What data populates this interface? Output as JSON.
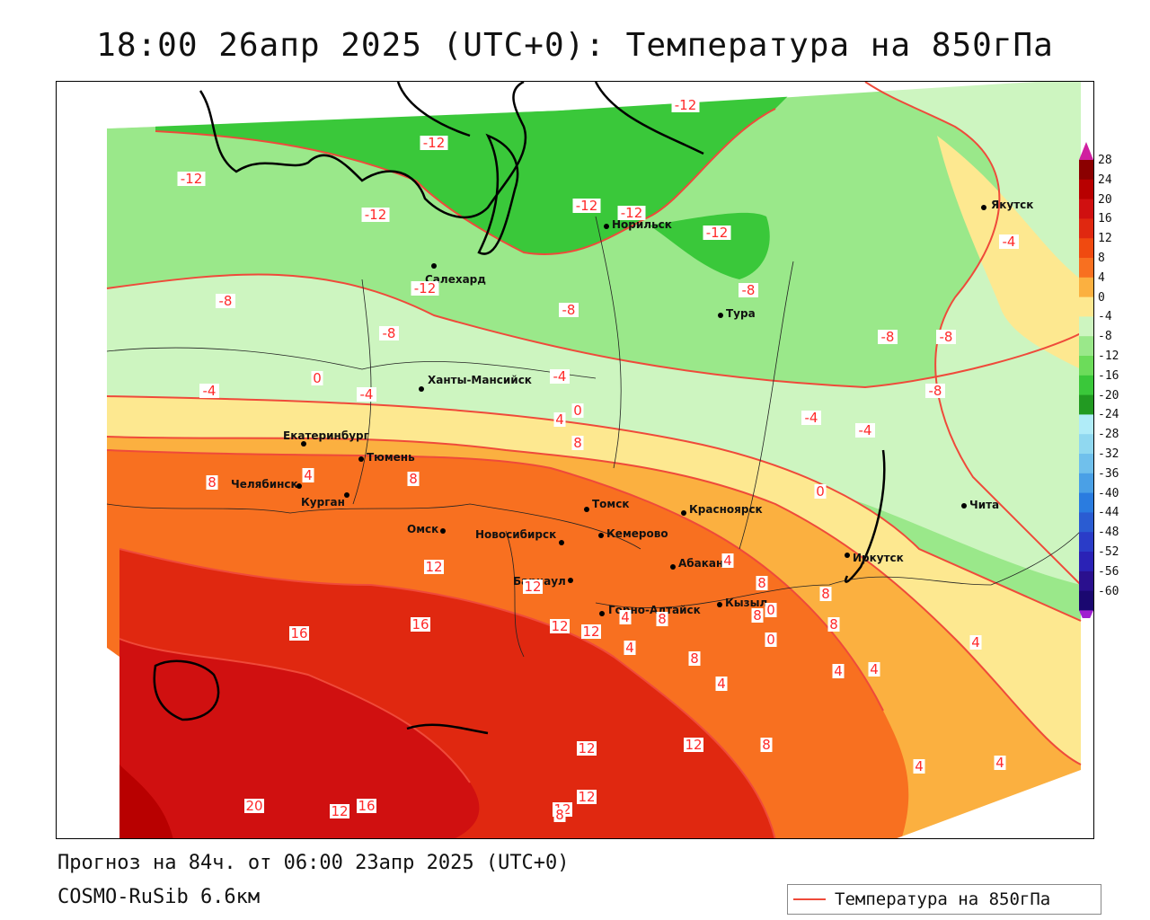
{
  "title": "18:00 26апр 2025 (UTC+0): Температура на 850гПа",
  "forecast_line": "Прогноз на 84ч. от 06:00 23апр 2025 (UTC+0)",
  "model_line": "COSMO-RuSib 6.6км",
  "legend": {
    "label": "Температура на 850гПа",
    "line_color": "#ef4a3a"
  },
  "colorbar": {
    "ticks": [
      "28",
      "24",
      "20",
      "16",
      "12",
      "8",
      "4",
      "0",
      "-4",
      "-8",
      "-12",
      "-16",
      "-20",
      "-24",
      "-28",
      "-32",
      "-36",
      "-40",
      "-44",
      "-48",
      "-52",
      "-56",
      "-60"
    ],
    "colors": [
      "#8b0000",
      "#b80000",
      "#d01010",
      "#e02810",
      "#f04a10",
      "#f87020",
      "#fbb040",
      "#fde890",
      "#cdf5c0",
      "#9ae88a",
      "#6cdc5a",
      "#3ac83a",
      "#229a22",
      "#b0ecf8",
      "#90d8f0",
      "#70c0ec",
      "#4aa0e6",
      "#2a7ce0",
      "#2a5cd2",
      "#2a3cc8",
      "#2a22b6",
      "#2a108e",
      "#1a0870"
    ],
    "top_arrow_color": "#d020a0",
    "bottom_arrow_color": "#a020d0"
  },
  "cities": [
    {
      "name": "Якутск"
    },
    {
      "name": "Норильск"
    },
    {
      "name": "Салехард"
    },
    {
      "name": "Тура"
    },
    {
      "name": "Ханты-Мансийск"
    },
    {
      "name": "Екатеринбург"
    },
    {
      "name": "Тюмень"
    },
    {
      "name": "Челябинск"
    },
    {
      "name": "Курган"
    },
    {
      "name": "Омск"
    },
    {
      "name": "Новосибирск"
    },
    {
      "name": "Томск"
    },
    {
      "name": "Кемерово"
    },
    {
      "name": "Красноярск"
    },
    {
      "name": "Барнаул"
    },
    {
      "name": "Абакан"
    },
    {
      "name": "Горно-Алтайск"
    },
    {
      "name": "Кызыл"
    },
    {
      "name": "Иркутск"
    },
    {
      "name": "Чита"
    }
  ],
  "isotherm_labels": [
    "-12",
    "-12",
    "-12",
    "-12",
    "-12",
    "-12",
    "-12",
    "-12",
    "-4",
    "-8",
    "-8",
    "-8",
    "-8",
    "-8",
    "-8",
    "-8",
    "-4",
    "-4",
    "-4",
    "-4",
    "-4",
    "0",
    "0",
    "0",
    "4",
    "8",
    "4",
    "8",
    "8",
    "12",
    "12",
    "16",
    "16",
    "12",
    "12",
    "4",
    "4",
    "8",
    "4",
    "8",
    "8",
    "8",
    "4",
    "4",
    "0",
    "0",
    "8",
    "8",
    "4",
    "4",
    "4",
    "4",
    "12",
    "12",
    "12",
    "12",
    "8",
    "20",
    "16",
    "12",
    "8"
  ]
}
